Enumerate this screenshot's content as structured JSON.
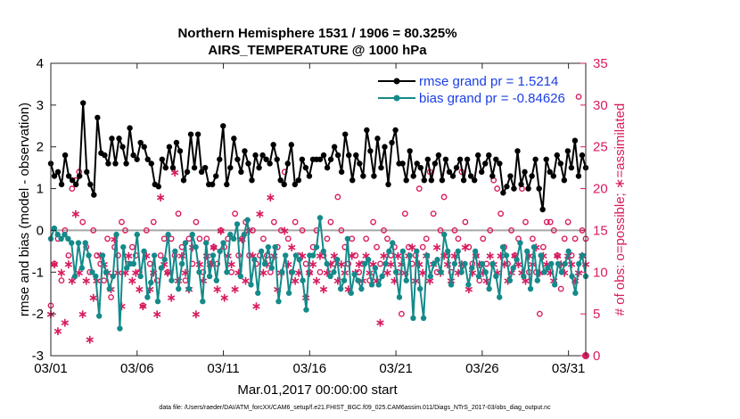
{
  "chart_data": {
    "type": "line",
    "title": "Northern Hemisphere 1531 / 1906 = 80.325%",
    "subtitle": "AIRS_TEMPERATURE @ 1000 hPa",
    "xlabel": "Mar.01,2017 00:00:00 start",
    "ylabel": "rmse and bias (model - observation)",
    "ylabel_right": "# of obs: o=possible; ∗=assimilated",
    "xlim": [
      0,
      31
    ],
    "ylim": [
      -3,
      4
    ],
    "ylim_right": [
      0,
      35
    ],
    "x_tick_values": [
      0,
      5,
      10,
      15,
      20,
      25,
      30
    ],
    "x_tick_labels": [
      "03/01",
      "03/06",
      "03/11",
      "03/16",
      "03/21",
      "03/26",
      "03/31"
    ],
    "y_tick_values": [
      -3,
      -2,
      -1,
      0,
      1,
      2,
      3,
      4
    ],
    "y_tick_labels": [
      "-3",
      "-2",
      "-1",
      "0",
      "1",
      "2",
      "3",
      "4"
    ],
    "y_right_tick_values": [
      0,
      5,
      10,
      15,
      20,
      25,
      30,
      35
    ],
    "y_right_tick_labels": [
      "0",
      "5",
      "10",
      "15",
      "20",
      "25",
      "30",
      "35"
    ],
    "zero_line": 0,
    "legend_position": "top-right",
    "series": [
      {
        "name": "rmse grand pr = 1.5214",
        "color": "#000000",
        "marker": "filled-circle",
        "values": [
          1.6,
          1.3,
          1.4,
          1.1,
          1.8,
          1.3,
          1.2,
          1.1,
          1.3,
          3.05,
          1.4,
          1.1,
          0.85,
          2.7,
          1.85,
          1.8,
          1.6,
          2.2,
          1.6,
          2.2,
          2.0,
          1.6,
          2.45,
          1.8,
          1.7,
          2.1,
          2.0,
          1.7,
          1.6,
          1.1,
          1.05,
          1.7,
          1.5,
          2.0,
          1.5,
          2.1,
          1.9,
          1.2,
          1.4,
          2.3,
          1.5,
          2.3,
          1.4,
          1.5,
          1.1,
          1.1,
          1.3,
          1.7,
          2.5,
          1.1,
          1.5,
          2.2,
          1.7,
          1.4,
          1.9,
          1.6,
          1.2,
          1.8,
          1.5,
          1.8,
          1.7,
          1.6,
          2.05,
          1.7,
          1.2,
          1.1,
          1.6,
          2.05,
          1.1,
          1.2,
          1.7,
          1.5,
          1.3,
          1.7,
          1.7,
          1.7,
          1.8,
          1.5,
          1.7,
          2.0,
          1.8,
          1.4,
          2.3,
          1.8,
          1.2,
          1.8,
          1.6,
          1.3,
          2.4,
          1.9,
          1.3,
          2.2,
          1.5,
          2.0,
          1.1,
          2.1,
          2.4,
          1.6,
          1.6,
          1.2,
          1.9,
          1.3,
          1.6,
          1.5,
          1.2,
          1.7,
          1.2,
          1.6,
          1.8,
          1.2,
          1.7,
          1.4,
          1.3,
          1.5,
          1.7,
          1.2,
          1.7,
          1.3,
          1.2,
          1.8,
          1.4,
          1.6,
          1.8,
          1.3,
          1.7,
          1.6,
          0.9,
          1.05,
          1.3,
          1.0,
          1.9,
          1.1,
          1.4,
          1.0,
          1.3,
          1.7,
          1.0,
          0.5,
          1.7,
          1.4,
          1.3,
          1.8,
          1.6,
          1.2,
          1.9,
          1.5,
          2.15,
          1.3,
          1.8,
          1.5
        ]
      },
      {
        "name": "bias grand pr = -0.84626",
        "color": "#158a8a",
        "marker": "filled-circle",
        "values": [
          -0.2,
          0.05,
          -0.1,
          -0.2,
          -0.1,
          -0.2,
          -0.3,
          -1.1,
          -0.3,
          -0.9,
          -0.3,
          -0.6,
          -1.0,
          -1.1,
          -2.05,
          -0.6,
          -1.0,
          -1.4,
          -1.1,
          -0.1,
          -2.35,
          -0.4,
          -0.9,
          -0.8,
          -0.8,
          -0.1,
          -1.1,
          -0.5,
          -1.6,
          -1.25,
          -0.6,
          -1.7,
          -0.9,
          -0.7,
          -0.1,
          -1.2,
          -0.5,
          -1.4,
          -0.8,
          -0.3,
          -1.4,
          -0.1,
          -0.4,
          -1.0,
          -1.7,
          -0.3,
          -1.1,
          -0.6,
          -1.2,
          -0.5,
          -0.3,
          -1.0,
          -0.1,
          -0.2,
          0.15,
          -1.1,
          -0.1,
          0.25,
          -1.3,
          -0.7,
          -1.5,
          -0.5,
          -0.8,
          -0.4,
          -0.9,
          -0.4,
          -1.7,
          -1.0,
          -0.6,
          -1.5,
          -1.0,
          -0.6,
          -0.7,
          -1.2,
          -1.9,
          -0.6,
          -0.6,
          -0.4,
          0.3,
          -0.5,
          -0.8,
          -1.1,
          -1.0,
          -0.7,
          -1.4,
          -1.2,
          -0.2,
          -1.5,
          -1.05,
          -1.2,
          -1.4,
          -0.8,
          -0.7,
          -1.3,
          -0.9,
          -1.3,
          -1.1,
          -0.8,
          -0.5,
          -0.3,
          -1.0,
          -1.6,
          -0.5,
          -1.2,
          -0.6,
          -2.1,
          -0.5,
          -1.4,
          -2.1,
          -0.6,
          -1.1,
          -0.8,
          -0.7,
          -1.0,
          -0.1,
          -0.5,
          -1.3,
          -0.8,
          -0.5,
          -1.0,
          -0.8,
          -1.3,
          -0.9,
          -0.5,
          -1.1,
          -0.8,
          -1.0,
          -1.4,
          -0.8,
          -1.1,
          -1.6,
          -0.4,
          -0.6,
          -1.2,
          -0.9,
          -0.7,
          -0.3,
          -1.1,
          -0.5,
          -1.4,
          -0.4,
          -1.2,
          -0.6,
          -1.0,
          -0.9,
          -0.8,
          -1.3,
          -0.8,
          -1.0,
          -0.8,
          -0.5,
          -1.1,
          -1.5,
          -0.8,
          -0.6,
          -1.1
        ]
      },
      {
        "name": "possible",
        "color": "#d81b60",
        "marker": "open-circle",
        "axis": "right",
        "values": [
          6,
          11,
          14,
          9,
          15,
          12,
          20,
          21,
          22,
          16,
          13,
          10,
          15,
          12,
          11,
          9,
          14,
          7,
          13,
          12,
          16,
          15,
          11,
          13,
          12,
          10,
          6,
          15,
          11,
          16,
          9,
          12,
          14,
          10,
          14,
          12,
          17,
          13,
          9,
          14,
          11,
          16,
          14,
          10,
          14,
          11,
          13,
          11,
          15,
          13,
          14,
          10,
          17,
          12,
          14,
          16,
          12,
          15,
          11,
          12,
          14,
          12,
          10,
          16,
          13,
          15,
          22,
          14,
          10,
          16,
          12,
          15,
          11,
          10,
          13,
          15,
          10,
          12,
          14,
          16,
          11,
          19,
          15,
          13,
          11,
          14,
          12,
          10,
          11,
          14,
          9,
          16,
          13,
          11,
          15,
          14,
          12,
          13,
          10,
          5,
          17,
          13,
          11,
          12,
          20,
          13,
          14,
          22,
          17,
          10,
          15,
          19,
          12,
          10,
          15,
          14,
          22,
          16,
          13,
          11,
          12,
          9,
          14,
          11,
          15,
          21,
          20,
          17,
          13,
          11,
          15,
          12,
          14,
          20,
          16,
          10,
          14,
          10,
          5,
          13,
          16,
          16,
          15,
          12,
          8,
          14,
          16,
          12,
          14,
          31,
          15,
          14
        ]
      },
      {
        "name": "assimilated",
        "color": "#d81b60",
        "marker": "star",
        "axis": "right",
        "values": [
          5,
          11,
          3,
          10,
          4,
          11,
          9,
          17,
          10,
          5,
          9,
          2,
          7,
          9,
          12,
          11,
          10,
          8,
          14,
          10,
          6,
          10,
          12,
          9,
          10,
          8,
          6,
          12,
          8,
          10,
          5,
          19,
          11,
          10,
          7,
          22,
          9,
          12,
          10,
          8,
          13,
          5,
          11,
          9,
          12,
          11,
          13,
          8,
          15,
          7,
          12,
          11,
          8,
          10,
          14,
          9,
          15,
          12,
          6,
          17,
          10,
          11,
          19,
          12,
          8,
          10,
          15,
          11,
          13,
          9,
          10,
          12,
          7,
          10,
          11,
          9,
          12,
          8,
          10,
          11,
          12,
          9,
          11,
          10,
          8,
          12,
          10,
          11,
          9,
          12,
          10,
          11,
          9,
          4,
          12,
          10,
          11,
          9,
          12,
          11,
          10,
          12,
          13,
          9,
          11,
          10,
          12,
          9,
          11,
          13,
          10,
          12,
          11,
          9,
          12,
          10,
          11,
          13,
          8,
          10,
          12,
          11,
          10,
          9,
          12,
          11,
          10,
          12,
          11,
          9,
          10,
          12,
          11,
          10,
          9,
          12,
          11,
          13,
          10,
          12,
          11,
          10,
          9,
          12,
          11,
          10,
          12,
          11,
          9,
          10,
          12,
          11
        ]
      }
    ]
  },
  "footer": {
    "data_file": "data file: /Users/raeder/DAI/ATM_forcXX/CAM6_setup/f.e21.FHIST_BGC.f09_025.CAM6assim.011/Diags_NTrS_2017-03/obs_diag_output.nc"
  }
}
